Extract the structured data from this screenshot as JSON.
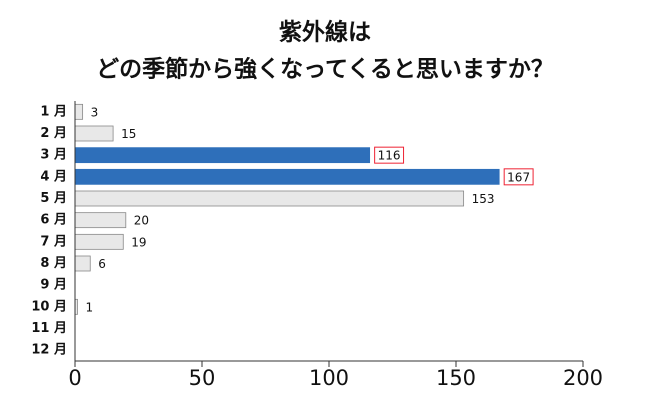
{
  "chart_data": {
    "type": "bar",
    "orientation": "horizontal",
    "title": [
      "紫外線は",
      "どの季節から強くなってくると思いますか？"
    ],
    "categories": [
      "1 月",
      "2 月",
      "3 月",
      "4 月",
      "5 月",
      "6 月",
      "7 月",
      "8 月",
      "9 月",
      "10 月",
      "11 月",
      "12 月"
    ],
    "values": [
      3,
      15,
      116,
      167,
      153,
      20,
      19,
      6,
      null,
      1,
      null,
      null
    ],
    "colors": [
      "#e8e8e8",
      "#e8e8e8",
      "#2e6fba",
      "#2e6fba",
      "#e8e8e8",
      "#e8e8e8",
      "#e8e8e8",
      "#e8e8e8",
      "#e8e8e8",
      "#e8e8e8",
      "#e8e8e8",
      "#e8e8e8"
    ],
    "xlim": [
      0,
      200
    ],
    "xticks": [
      0,
      50,
      100,
      150,
      200
    ],
    "grid": false
  }
}
